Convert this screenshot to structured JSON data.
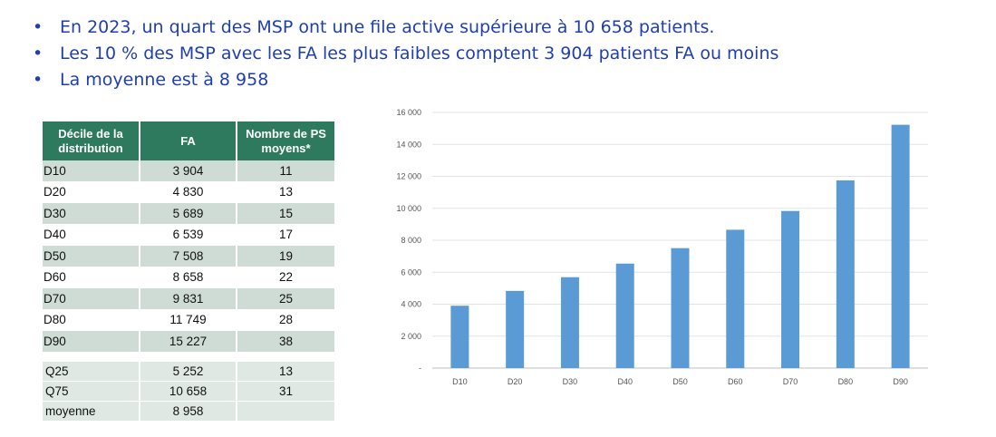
{
  "bullets": [
    "En 2023, un quart des MSP ont une file active supérieure à 10 658 patients.",
    "Les 10 % des MSP avec les FA les plus faibles comptent 3 904 patients FA ou moins",
    "La moyenne est à 8 958"
  ],
  "bullet_symbol": "•",
  "table": {
    "headers": [
      "Décile de la distribution",
      "FA",
      "Nombre de PS moyens*"
    ],
    "rows": [
      [
        "D10",
        "3  904",
        "11"
      ],
      [
        "D20",
        "4 830",
        "13"
      ],
      [
        "D30",
        "5 689",
        "15"
      ],
      [
        "D40",
        "6 539",
        "17"
      ],
      [
        "D50",
        "7 508",
        "19"
      ],
      [
        "D60",
        "8 658",
        "22"
      ],
      [
        "D70",
        "9 831",
        "25"
      ],
      [
        "D80",
        "11 749",
        "28"
      ],
      [
        "D90",
        "15 227",
        "38"
      ]
    ],
    "summary_rows": [
      [
        "Q25",
        "5 252",
        "13"
      ],
      [
        "Q75",
        "10 658",
        "31"
      ],
      [
        "moyenne",
        "8 958",
        ""
      ]
    ],
    "header_color": "#2e7a5e",
    "stripe_color": "#cfdcd6"
  },
  "chart_data": {
    "type": "bar",
    "categories": [
      "D10",
      "D20",
      "D30",
      "D40",
      "D50",
      "D60",
      "D70",
      "D80",
      "D90"
    ],
    "values": [
      3904,
      4830,
      5689,
      6539,
      7508,
      8658,
      9831,
      11749,
      15227
    ],
    "ylim": [
      0,
      16000
    ],
    "yticks": [
      0,
      2000,
      4000,
      6000,
      8000,
      10000,
      12000,
      14000,
      16000
    ],
    "ytick_labels": [
      "-",
      "2 000",
      "4 000",
      "6 000",
      "8 000",
      "10 000",
      "12 000",
      "14 000",
      "16 000"
    ],
    "grid": true,
    "bar_color": "#5b9bd5",
    "title": "",
    "xlabel": "",
    "ylabel": ""
  }
}
